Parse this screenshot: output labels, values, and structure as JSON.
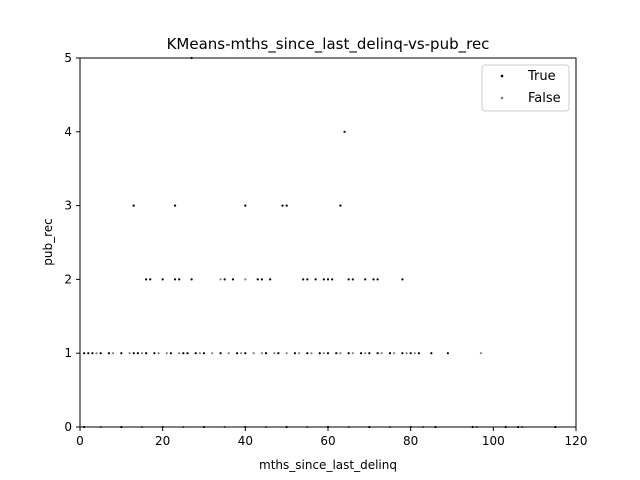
{
  "chart_data": {
    "type": "scatter",
    "title": "KMeans-mths_since_last_delinq-vs-pub_rec",
    "xlabel": "mths_since_last_delinq",
    "ylabel": "pub_rec",
    "xlim": [
      0,
      120
    ],
    "ylim": [
      0,
      5
    ],
    "xticks": [
      "0",
      "20",
      "40",
      "60",
      "80",
      "100",
      "120"
    ],
    "yticks": [
      "0",
      "1",
      "2",
      "3",
      "4",
      "5"
    ],
    "grid": false,
    "legend_position": "top-right",
    "series": [
      {
        "name": "True",
        "color": "#000000",
        "points": [
          [
            27,
            5
          ],
          [
            64,
            4
          ],
          [
            13,
            3
          ],
          [
            23,
            3
          ],
          [
            40,
            3
          ],
          [
            49,
            3
          ],
          [
            50,
            3
          ],
          [
            63,
            3
          ],
          [
            16,
            2
          ],
          [
            17,
            2
          ],
          [
            20,
            2
          ],
          [
            23,
            2
          ],
          [
            24,
            2
          ],
          [
            27,
            2
          ],
          [
            35,
            2
          ],
          [
            37,
            2
          ],
          [
            43,
            2
          ],
          [
            44,
            2
          ],
          [
            46,
            2
          ],
          [
            54,
            2
          ],
          [
            55,
            2
          ],
          [
            57,
            2
          ],
          [
            59,
            2
          ],
          [
            60,
            2
          ],
          [
            61,
            2
          ],
          [
            65,
            2
          ],
          [
            66,
            2
          ],
          [
            69,
            2
          ],
          [
            71,
            2
          ],
          [
            72,
            2
          ],
          [
            78,
            2
          ],
          [
            1,
            1
          ],
          [
            2,
            1
          ],
          [
            3,
            1
          ],
          [
            5,
            1
          ],
          [
            7,
            1
          ],
          [
            10,
            1
          ],
          [
            13,
            1
          ],
          [
            14,
            1
          ],
          [
            16,
            1
          ],
          [
            18,
            1
          ],
          [
            22,
            1
          ],
          [
            25,
            1
          ],
          [
            26,
            1
          ],
          [
            28,
            1
          ],
          [
            30,
            1
          ],
          [
            34,
            1
          ],
          [
            38,
            1
          ],
          [
            40,
            1
          ],
          [
            45,
            1
          ],
          [
            48,
            1
          ],
          [
            52,
            1
          ],
          [
            55,
            1
          ],
          [
            58,
            1
          ],
          [
            60,
            1
          ],
          [
            62,
            1
          ],
          [
            65,
            1
          ],
          [
            68,
            1
          ],
          [
            70,
            1
          ],
          [
            72,
            1
          ],
          [
            75,
            1
          ],
          [
            78,
            1
          ],
          [
            80,
            1
          ],
          [
            82,
            1
          ],
          [
            85,
            1
          ],
          [
            89,
            1
          ],
          [
            1,
            0
          ],
          [
            10,
            0
          ],
          [
            20,
            0
          ],
          [
            30,
            0
          ],
          [
            40,
            0
          ],
          [
            50,
            0
          ],
          [
            60,
            0
          ],
          [
            70,
            0
          ],
          [
            80,
            0
          ],
          [
            86,
            0
          ],
          [
            95,
            0
          ],
          [
            103,
            0
          ],
          [
            106,
            0
          ],
          [
            115,
            0
          ]
        ]
      },
      {
        "name": "False",
        "color": "#808080",
        "points": [
          [
            34,
            2
          ],
          [
            40,
            2
          ],
          [
            97,
            1
          ],
          [
            4,
            1
          ],
          [
            8,
            1
          ],
          [
            12,
            1
          ],
          [
            15,
            1
          ],
          [
            19,
            1
          ],
          [
            21,
            1
          ],
          [
            24,
            1
          ],
          [
            29,
            1
          ],
          [
            32,
            1
          ],
          [
            36,
            1
          ],
          [
            39,
            1
          ],
          [
            42,
            1
          ],
          [
            44,
            1
          ],
          [
            47,
            1
          ],
          [
            50,
            1
          ],
          [
            53,
            1
          ],
          [
            56,
            1
          ],
          [
            59,
            1
          ],
          [
            63,
            1
          ],
          [
            66,
            1
          ],
          [
            69,
            1
          ],
          [
            73,
            1
          ],
          [
            76,
            1
          ],
          [
            79,
            1
          ],
          [
            81,
            1
          ],
          [
            5,
            0
          ],
          [
            15,
            0
          ],
          [
            25,
            0
          ],
          [
            35,
            0
          ],
          [
            45,
            0
          ],
          [
            55,
            0
          ],
          [
            65,
            0
          ],
          [
            75,
            0
          ],
          [
            83,
            0
          ],
          [
            96,
            0
          ],
          [
            107,
            0
          ]
        ]
      }
    ]
  }
}
